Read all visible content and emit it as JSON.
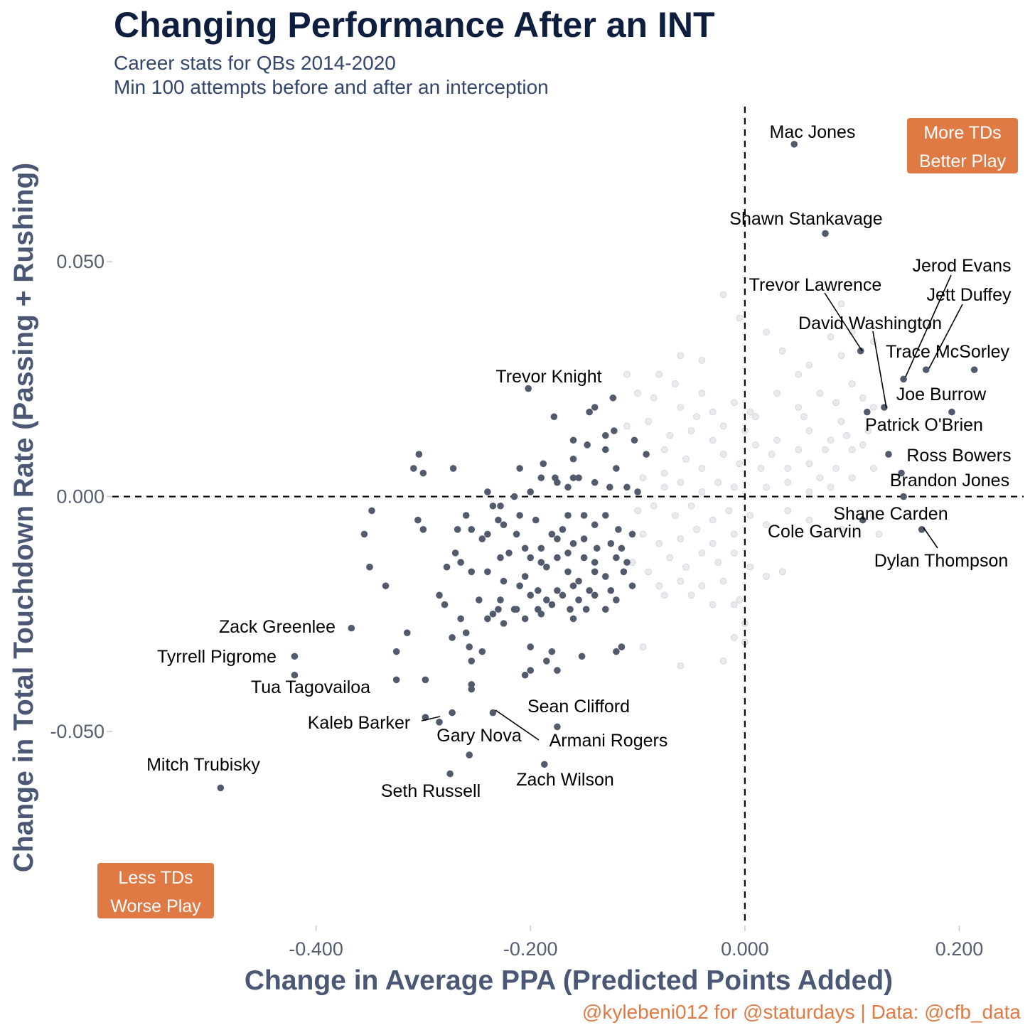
{
  "title": "Changing Performance After an INT",
  "subtitle": [
    "Career stats for QBs 2014-2020",
    "Min 100 attempts before and after an interception"
  ],
  "caption": "@kylebeni012 for @staturdays | Data: @cfb_data",
  "colors": {
    "highlight_point": "#525a6d",
    "faded_point": "#d5d8de",
    "quadrant_box": "#e07a45",
    "title": "#0d1e3f",
    "axis_title": "#4b5875"
  },
  "chart_data": {
    "type": "scatter",
    "xlabel": "Change in Average PPA (Predicted Points Added)",
    "ylabel": "Change in Total Touchdown Rate (Passing + Rushing)",
    "xlim": [
      -0.59,
      0.26
    ],
    "ylim": [
      -0.091,
      0.083
    ],
    "grid": false,
    "x_ticks": [
      -0.4,
      -0.2,
      0.0,
      0.2
    ],
    "x_tick_labels": [
      "-0.400",
      "-0.200",
      "0.000",
      "0.200"
    ],
    "y_ticks": [
      -0.05,
      0.0,
      0.05
    ],
    "y_tick_labels": [
      "-0.050",
      "0.000",
      "0.050"
    ],
    "reference_lines": {
      "x": 0.0,
      "y": 0.0
    },
    "quadrant_labels": [
      {
        "lines": [
          "More TDs",
          "Better Play"
        ],
        "position": "top-right"
      },
      {
        "lines": [
          "Less TDs",
          "Worse Play"
        ],
        "position": "bottom-left"
      }
    ],
    "labeled_points": [
      {
        "name": "Mac Jones",
        "x": 0.046,
        "y": 0.075
      },
      {
        "name": "Shawn Stankavage",
        "x": 0.075,
        "y": 0.056
      },
      {
        "name": "Jerod Evans",
        "x": 0.148,
        "y": 0.025
      },
      {
        "name": "Jett Duffey",
        "x": 0.169,
        "y": 0.027
      },
      {
        "name": "Trevor Lawrence",
        "x": 0.108,
        "y": 0.031
      },
      {
        "name": "David Washington",
        "x": 0.13,
        "y": 0.019
      },
      {
        "name": "Trace McSorley",
        "x": 0.214,
        "y": 0.027
      },
      {
        "name": "Trevor Knight",
        "x": -0.202,
        "y": 0.023
      },
      {
        "name": "Joe Burrow",
        "x": 0.193,
        "y": 0.018
      },
      {
        "name": "Patrick O'Brien",
        "x": 0.114,
        "y": 0.018
      },
      {
        "name": "Ross Bowers",
        "x": 0.134,
        "y": 0.009
      },
      {
        "name": "Brandon Jones",
        "x": 0.146,
        "y": 0.005
      },
      {
        "name": "Shane Carden",
        "x": 0.148,
        "y": 0.0
      },
      {
        "name": "Cole Garvin",
        "x": 0.11,
        "y": -0.005
      },
      {
        "name": "Dylan Thompson",
        "x": 0.165,
        "y": -0.007
      },
      {
        "name": "Zack Greenlee",
        "x": -0.367,
        "y": -0.028
      },
      {
        "name": "Tyrrell Pigrome",
        "x": -0.42,
        "y": -0.034
      },
      {
        "name": "Tua Tagovailoa",
        "x": -0.42,
        "y": -0.038
      },
      {
        "name": "Sean Clifford",
        "x": -0.235,
        "y": -0.046
      },
      {
        "name": "Kaleb Barker",
        "x": -0.285,
        "y": -0.048
      },
      {
        "name": "Armani Rogers",
        "x": -0.175,
        "y": -0.049
      },
      {
        "name": "Gary Nova",
        "x": -0.257,
        "y": -0.055
      },
      {
        "name": "Zach Wilson",
        "x": -0.187,
        "y": -0.057
      },
      {
        "name": "Mitch Trubisky",
        "x": -0.489,
        "y": -0.062
      },
      {
        "name": "Seth Russell",
        "x": -0.275,
        "y": -0.059
      }
    ],
    "highlighted_points": [
      [
        -0.304,
        0.009
      ],
      [
        -0.309,
        0.006
      ],
      [
        -0.3,
        0.005
      ],
      [
        -0.272,
        0.006
      ],
      [
        -0.24,
        0.001
      ],
      [
        -0.21,
        0.006
      ],
      [
        -0.178,
        0.017
      ],
      [
        -0.16,
        0.012
      ],
      [
        -0.145,
        0.018
      ],
      [
        -0.123,
        0.021
      ],
      [
        -0.122,
        0.014
      ],
      [
        -0.14,
        0.019
      ],
      [
        -0.147,
        0.011
      ],
      [
        -0.13,
        0.013
      ],
      [
        -0.103,
        0.012
      ],
      [
        -0.092,
        0.009
      ],
      [
        -0.13,
        0.01
      ],
      [
        -0.16,
        0.008
      ],
      [
        -0.188,
        0.007
      ],
      [
        -0.177,
        0.004
      ],
      [
        -0.16,
        0.004
      ],
      [
        -0.12,
        0.006
      ],
      [
        -0.11,
        0.002
      ],
      [
        -0.175,
        0.003
      ],
      [
        -0.165,
        0.002
      ],
      [
        -0.155,
        0.004
      ],
      [
        -0.14,
        0.003
      ],
      [
        -0.126,
        0.002
      ],
      [
        -0.1,
        0.001
      ],
      [
        -0.19,
        0.004
      ],
      [
        -0.2,
        0.001
      ],
      [
        -0.215,
        0.0
      ],
      [
        -0.228,
        -0.002
      ],
      [
        -0.235,
        -0.002
      ],
      [
        -0.26,
        -0.004
      ],
      [
        -0.255,
        -0.007
      ],
      [
        -0.24,
        -0.008
      ],
      [
        -0.225,
        -0.006
      ],
      [
        -0.21,
        -0.004
      ],
      [
        -0.195,
        -0.005
      ],
      [
        -0.18,
        -0.008
      ],
      [
        -0.17,
        -0.007
      ],
      [
        -0.165,
        -0.004
      ],
      [
        -0.15,
        -0.004
      ],
      [
        -0.14,
        -0.006
      ],
      [
        -0.13,
        -0.004
      ],
      [
        -0.118,
        -0.007
      ],
      [
        -0.105,
        -0.008
      ],
      [
        -0.355,
        -0.008
      ],
      [
        -0.348,
        -0.003
      ],
      [
        -0.305,
        -0.005
      ],
      [
        -0.3,
        -0.007
      ],
      [
        -0.268,
        -0.007
      ],
      [
        -0.245,
        -0.009
      ],
      [
        -0.23,
        -0.005
      ],
      [
        -0.213,
        -0.008
      ],
      [
        -0.205,
        -0.011
      ],
      [
        -0.19,
        -0.011
      ],
      [
        -0.175,
        -0.009
      ],
      [
        -0.16,
        -0.01
      ],
      [
        -0.15,
        -0.009
      ],
      [
        -0.138,
        -0.011
      ],
      [
        -0.125,
        -0.01
      ],
      [
        -0.115,
        -0.011
      ],
      [
        -0.27,
        -0.012
      ],
      [
        -0.265,
        -0.014
      ],
      [
        -0.255,
        -0.016
      ],
      [
        -0.228,
        -0.013
      ],
      [
        -0.22,
        -0.012
      ],
      [
        -0.2,
        -0.013
      ],
      [
        -0.19,
        -0.014
      ],
      [
        -0.175,
        -0.013
      ],
      [
        -0.165,
        -0.012
      ],
      [
        -0.15,
        -0.013
      ],
      [
        -0.14,
        -0.014
      ],
      [
        -0.12,
        -0.013
      ],
      [
        -0.11,
        -0.014
      ],
      [
        -0.35,
        -0.015
      ],
      [
        -0.335,
        -0.019
      ],
      [
        -0.278,
        -0.015
      ],
      [
        -0.24,
        -0.016
      ],
      [
        -0.205,
        -0.017
      ],
      [
        -0.185,
        -0.015
      ],
      [
        -0.165,
        -0.016
      ],
      [
        -0.155,
        -0.018
      ],
      [
        -0.14,
        -0.016
      ],
      [
        -0.13,
        -0.017
      ],
      [
        -0.113,
        -0.016
      ],
      [
        -0.225,
        -0.018
      ],
      [
        -0.21,
        -0.019
      ],
      [
        -0.193,
        -0.02
      ],
      [
        -0.175,
        -0.02
      ],
      [
        -0.16,
        -0.019
      ],
      [
        -0.145,
        -0.02
      ],
      [
        -0.125,
        -0.02
      ],
      [
        -0.105,
        -0.019
      ],
      [
        -0.285,
        -0.021
      ],
      [
        -0.248,
        -0.022
      ],
      [
        -0.228,
        -0.022
      ],
      [
        -0.215,
        -0.024
      ],
      [
        -0.2,
        -0.021
      ],
      [
        -0.185,
        -0.022
      ],
      [
        -0.17,
        -0.021
      ],
      [
        -0.155,
        -0.022
      ],
      [
        -0.14,
        -0.021
      ],
      [
        -0.12,
        -0.022
      ],
      [
        -0.235,
        -0.025
      ],
      [
        -0.213,
        -0.024
      ],
      [
        -0.193,
        -0.024
      ],
      [
        -0.18,
        -0.023
      ],
      [
        -0.163,
        -0.024
      ],
      [
        -0.148,
        -0.024
      ],
      [
        -0.13,
        -0.024
      ],
      [
        -0.225,
        -0.027
      ],
      [
        -0.28,
        -0.023
      ],
      [
        -0.265,
        -0.026
      ],
      [
        -0.24,
        -0.026
      ],
      [
        -0.23,
        -0.024
      ],
      [
        -0.205,
        -0.026
      ],
      [
        -0.19,
        -0.025
      ],
      [
        -0.16,
        -0.026
      ],
      [
        -0.26,
        -0.029
      ],
      [
        -0.273,
        -0.03
      ],
      [
        -0.257,
        -0.032
      ],
      [
        -0.315,
        -0.029
      ],
      [
        -0.325,
        -0.033
      ],
      [
        -0.245,
        -0.033
      ],
      [
        -0.2,
        -0.032
      ],
      [
        -0.18,
        -0.033
      ],
      [
        -0.152,
        -0.034
      ],
      [
        -0.12,
        -0.033
      ],
      [
        -0.115,
        -0.032
      ],
      [
        -0.185,
        -0.035
      ],
      [
        -0.325,
        -0.039
      ],
      [
        -0.298,
        -0.039
      ],
      [
        -0.255,
        -0.035
      ],
      [
        -0.205,
        -0.038
      ],
      [
        -0.175,
        -0.037
      ],
      [
        -0.255,
        -0.04
      ],
      [
        -0.255,
        -0.041
      ],
      [
        -0.298,
        -0.047
      ],
      [
        -0.273,
        -0.046
      ],
      [
        -0.2,
        -0.037
      ]
    ],
    "faded_points": [
      [
        -0.08,
        0.026
      ],
      [
        -0.06,
        0.03
      ],
      [
        -0.04,
        0.029
      ],
      [
        -0.02,
        0.043
      ],
      [
        -0.005,
        0.038
      ],
      [
        0.02,
        0.035
      ],
      [
        0.035,
        0.031
      ],
      [
        0.06,
        0.028
      ],
      [
        0.08,
        0.034
      ],
      [
        0.1,
        0.035
      ],
      [
        0.09,
        0.041
      ],
      [
        0.12,
        0.033
      ],
      [
        0.09,
        0.03
      ],
      [
        0.05,
        0.026
      ],
      [
        -0.1,
        0.022
      ],
      [
        -0.085,
        0.021
      ],
      [
        -0.06,
        0.019
      ],
      [
        -0.04,
        0.022
      ],
      [
        -0.03,
        0.018
      ],
      [
        -0.01,
        0.02
      ],
      [
        0.01,
        0.017
      ],
      [
        0.03,
        0.022
      ],
      [
        0.05,
        0.019
      ],
      [
        0.07,
        0.022
      ],
      [
        0.085,
        0.02
      ],
      [
        0.1,
        0.024
      ],
      [
        0.11,
        0.021
      ],
      [
        0.12,
        0.019
      ],
      [
        -0.11,
        0.015
      ],
      [
        -0.09,
        0.016
      ],
      [
        -0.07,
        0.013
      ],
      [
        -0.05,
        0.014
      ],
      [
        -0.03,
        0.012
      ],
      [
        -0.02,
        0.015
      ],
      [
        0.0,
        0.014
      ],
      [
        0.01,
        0.011
      ],
      [
        0.03,
        0.012
      ],
      [
        0.05,
        0.01
      ],
      [
        0.06,
        0.014
      ],
      [
        0.08,
        0.012
      ],
      [
        0.09,
        0.016
      ],
      [
        0.11,
        0.011
      ],
      [
        0.095,
        0.013
      ],
      [
        -0.075,
        0.01
      ],
      [
        -0.055,
        0.008
      ],
      [
        -0.04,
        0.006
      ],
      [
        -0.02,
        0.009
      ],
      [
        -0.005,
        0.007
      ],
      [
        0.015,
        0.006
      ],
      [
        0.025,
        0.009
      ],
      [
        0.04,
        0.006
      ],
      [
        0.06,
        0.007
      ],
      [
        0.07,
        0.004
      ],
      [
        0.085,
        0.006
      ],
      [
        0.1,
        0.004
      ],
      [
        0.12,
        0.006
      ],
      [
        -0.095,
        0.004
      ],
      [
        -0.075,
        0.002
      ],
      [
        -0.06,
        0.003
      ],
      [
        -0.04,
        0.001
      ],
      [
        -0.025,
        0.003
      ],
      [
        -0.01,
        0.002
      ],
      [
        0.02,
        0.002
      ],
      [
        0.04,
        0.003
      ],
      [
        0.06,
        0.001
      ],
      [
        0.08,
        0.002
      ],
      [
        -0.1,
        -0.003
      ],
      [
        -0.085,
        -0.002
      ],
      [
        -0.065,
        -0.004
      ],
      [
        -0.05,
        -0.002
      ],
      [
        -0.03,
        -0.005
      ],
      [
        -0.015,
        -0.003
      ],
      [
        0.005,
        -0.004
      ],
      [
        0.02,
        -0.006
      ],
      [
        0.04,
        -0.003
      ],
      [
        0.06,
        -0.005
      ],
      [
        0.07,
        -0.008
      ],
      [
        0.09,
        -0.007
      ],
      [
        0.12,
        -0.004
      ],
      [
        0.125,
        -0.008
      ],
      [
        -0.095,
        -0.008
      ],
      [
        -0.08,
        -0.01
      ],
      [
        -0.06,
        -0.009
      ],
      [
        -0.045,
        -0.007
      ],
      [
        -0.03,
        -0.01
      ],
      [
        -0.01,
        -0.008
      ],
      [
        -0.07,
        -0.013
      ],
      [
        -0.055,
        -0.015
      ],
      [
        -0.04,
        -0.012
      ],
      [
        -0.025,
        -0.014
      ],
      [
        -0.01,
        -0.012
      ],
      [
        0.005,
        -0.015
      ],
      [
        -0.105,
        -0.014
      ],
      [
        -0.09,
        -0.016
      ],
      [
        -0.08,
        -0.019
      ],
      [
        -0.06,
        -0.018
      ],
      [
        -0.04,
        -0.019
      ],
      [
        -0.02,
        -0.018
      ],
      [
        -0.005,
        -0.022
      ],
      [
        0.02,
        -0.017
      ],
      [
        0.035,
        -0.016
      ],
      [
        -0.075,
        -0.021
      ],
      [
        -0.05,
        -0.021
      ],
      [
        -0.03,
        -0.023
      ],
      [
        -0.01,
        -0.023
      ],
      [
        0.0,
        -0.027
      ],
      [
        -0.095,
        -0.032
      ],
      [
        -0.06,
        -0.036
      ],
      [
        -0.02,
        -0.035
      ],
      [
        -0.01,
        -0.03
      ],
      [
        0.0,
        -0.031
      ],
      [
        -0.11,
        0.026
      ],
      [
        -0.075,
        0.005
      ],
      [
        0.005,
        0.018
      ],
      [
        0.055,
        0.017
      ],
      [
        0.075,
        0.01
      ],
      [
        -0.045,
        0.017
      ],
      [
        -0.065,
        0.024
      ],
      [
        0.115,
        0.014
      ],
      [
        0.1,
        0.01
      ]
    ]
  }
}
